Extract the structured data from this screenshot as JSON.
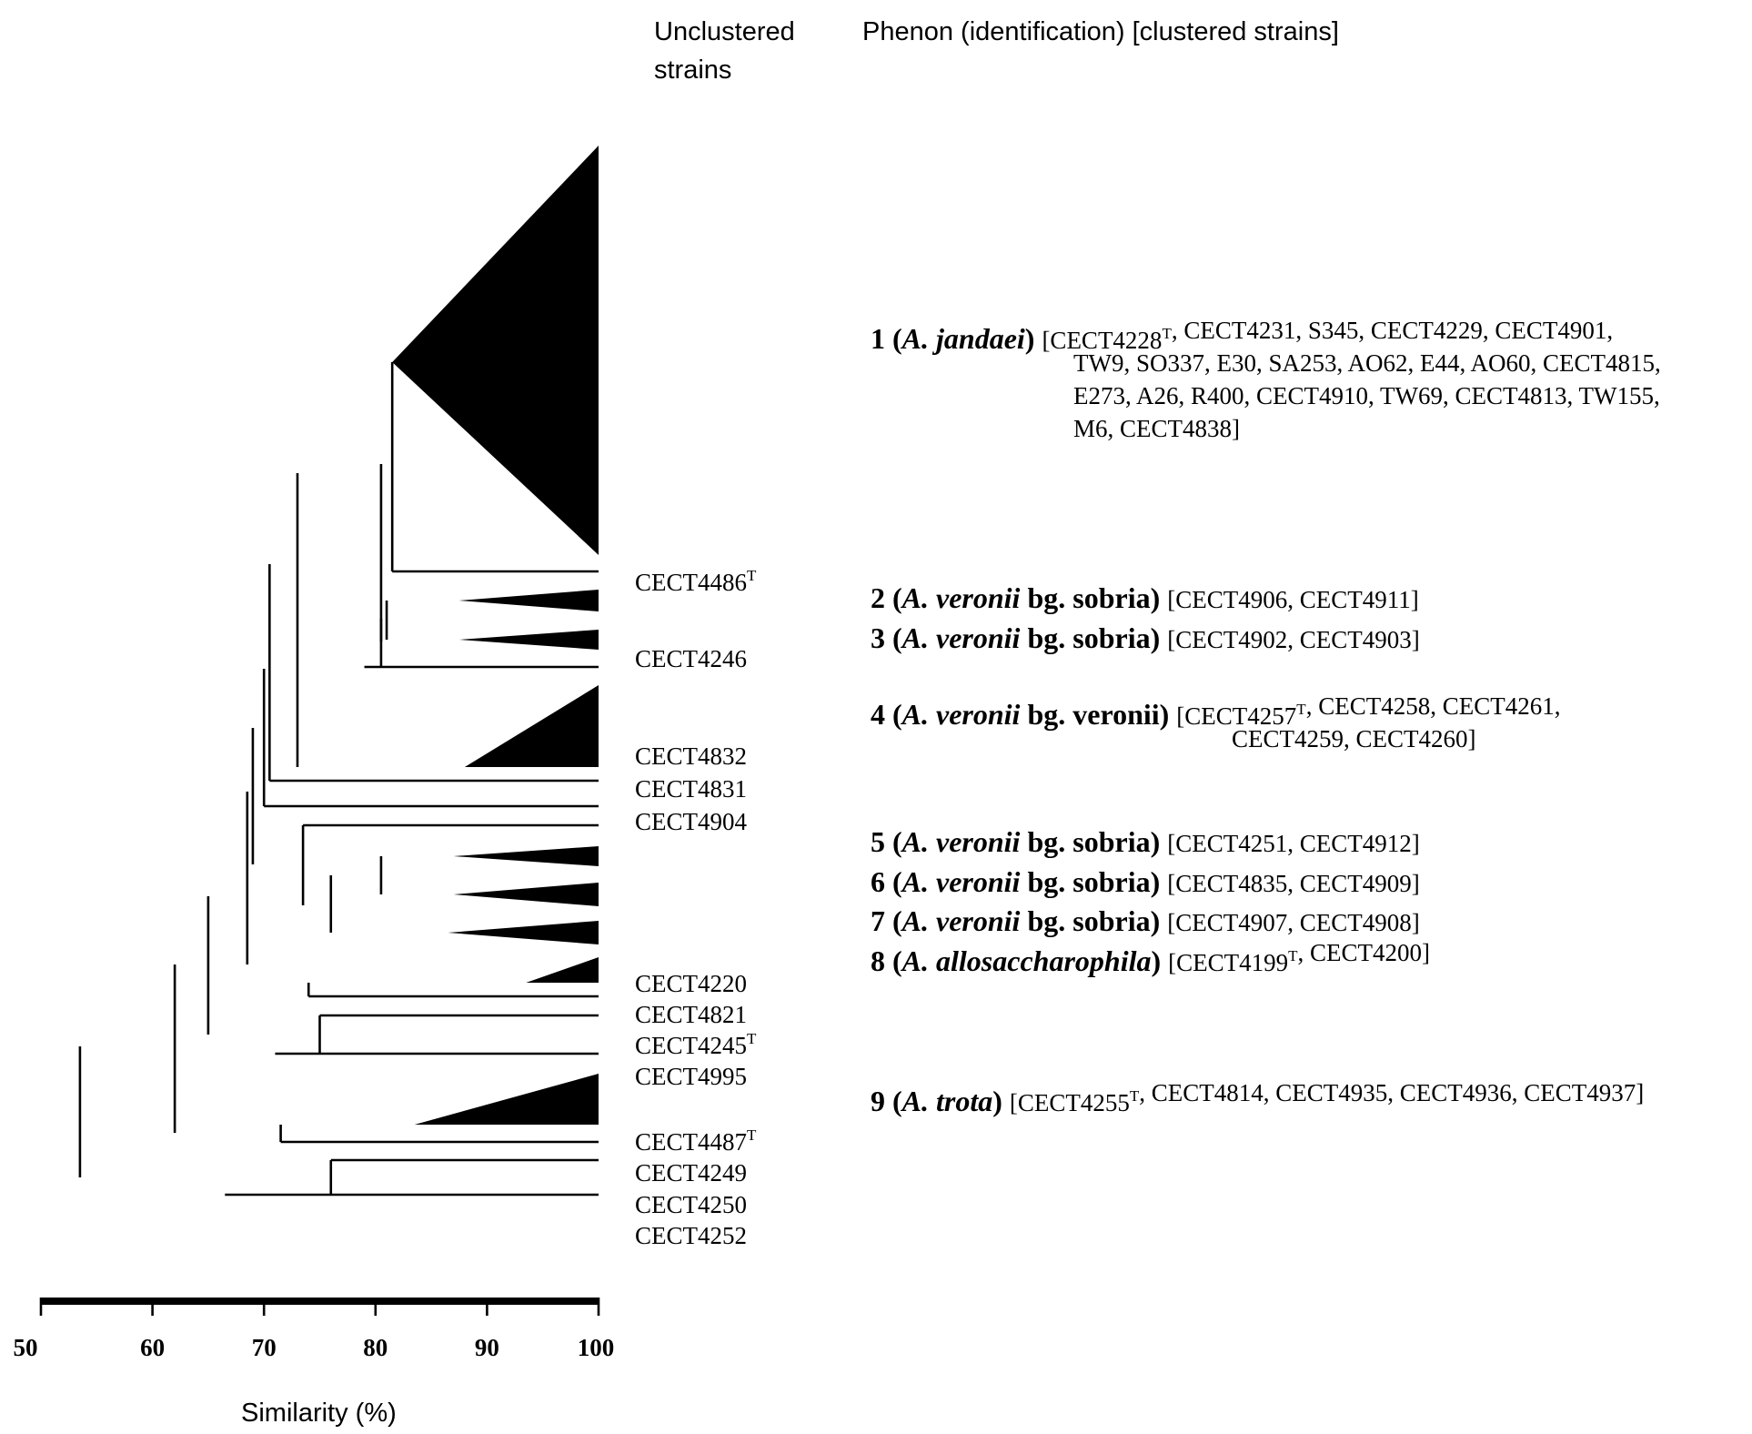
{
  "headers": {
    "unclustered_line1": "Unclustered",
    "unclustered_line2": "strains",
    "phenon": "Phenon (identification) [clustered strains]"
  },
  "unclustered": [
    {
      "label": "CECT4486",
      "sup": "T"
    },
    {
      "label": "CECT4246",
      "sup": ""
    },
    {
      "label": "CECT4832",
      "sup": ""
    },
    {
      "label": "CECT4831",
      "sup": ""
    },
    {
      "label": "CECT4904",
      "sup": ""
    },
    {
      "label": "CECT4220",
      "sup": ""
    },
    {
      "label": "CECT4821",
      "sup": ""
    },
    {
      "label": "CECT4245",
      "sup": "T"
    },
    {
      "label": "CECT4995",
      "sup": ""
    },
    {
      "label": "CECT4487",
      "sup": "T"
    },
    {
      "label": "CECT4249",
      "sup": ""
    },
    {
      "label": "CECT4250",
      "sup": ""
    },
    {
      "label": "CECT4252",
      "sup": ""
    }
  ],
  "phenons": [
    {
      "num": "1",
      "species": "A. jandaei",
      "suffix": "",
      "lines": [
        [
          {
            "t": "[CECT4228"
          },
          {
            "t": "T",
            "sup": true
          },
          {
            "t": ", CECT4231, S345, CECT4229, CECT4901,"
          }
        ],
        [
          {
            "t": "TW9, SO337, E30, SA253,  AO62, E44, AO60, CECT4815,"
          }
        ],
        [
          {
            "t": "E273, A26, R400, CECT4910, TW69, CECT4813,  TW155,"
          }
        ],
        [
          {
            "t": "M6, CECT4838]"
          }
        ]
      ]
    },
    {
      "num": "2",
      "species": "A. veronii",
      "suffix": " bg. sobria",
      "lines": [
        [
          {
            "t": "[CECT4906, CECT4911]"
          }
        ]
      ]
    },
    {
      "num": "3",
      "species": "A. veronii",
      "suffix": " bg. sobria",
      "lines": [
        [
          {
            "t": "[CECT4902, CECT4903]"
          }
        ]
      ]
    },
    {
      "num": "4",
      "species": "A. veronii",
      "suffix": " bg. veronii",
      "lines": [
        [
          {
            "t": "[CECT4257"
          },
          {
            "t": "T",
            "sup": true
          },
          {
            "t": ", CECT4258, CECT4261,"
          }
        ],
        [
          {
            "t": "CECT4259, CECT4260]"
          }
        ]
      ]
    },
    {
      "num": "5",
      "species": "A. veronii",
      "suffix": " bg. sobria",
      "lines": [
        [
          {
            "t": "[CECT4251, CECT4912]"
          }
        ]
      ]
    },
    {
      "num": "6",
      "species": "A. veronii",
      "suffix": " bg. sobria",
      "lines": [
        [
          {
            "t": "[CECT4835, CECT4909]"
          }
        ]
      ]
    },
    {
      "num": "7",
      "species": "A. veronii",
      "suffix": " bg. sobria",
      "lines": [
        [
          {
            "t": "[CECT4907, CECT4908]"
          }
        ]
      ]
    },
    {
      "num": "8",
      "species": "A. allosaccharophila",
      "suffix": "",
      "lines": [
        [
          {
            "t": "[CECT4199"
          },
          {
            "t": "T",
            "sup": true
          },
          {
            "t": ", CECT4200]"
          }
        ]
      ]
    },
    {
      "num": "9",
      "species": "A. trota",
      "suffix": "",
      "lines": [
        [
          {
            "t": "[CECT4255"
          },
          {
            "t": "T",
            "sup": true
          },
          {
            "t": ", CECT4814, CECT4935, CECT4936, CECT4937]"
          }
        ]
      ]
    }
  ],
  "axis": {
    "ticks": [
      50,
      60,
      70,
      80,
      90,
      100
    ],
    "range": [
      50,
      100
    ],
    "label": "Similarity (%)"
  },
  "tree": {
    "clusters": [
      {
        "name": "phenon-1",
        "node": 81.5,
        "range": [
          160,
          610
        ]
      },
      {
        "name": "phenon-2",
        "node": 87.5,
        "range": [
          648,
          672
        ]
      },
      {
        "name": "phenon-3",
        "node": 87.5,
        "range": [
          692,
          714
        ]
      },
      {
        "name": "phenon-4",
        "node": 88.0,
        "range": [
          753,
          843
        ]
      },
      {
        "name": "phenon-5",
        "node": 87.0,
        "range": [
          930,
          952
        ]
      },
      {
        "name": "phenon-6",
        "node": 87.0,
        "range": [
          970,
          996
        ]
      },
      {
        "name": "phenon-7",
        "node": 86.5,
        "range": [
          1012,
          1038
        ]
      },
      {
        "name": "phenon-8",
        "node": 93.5,
        "range": [
          1052,
          1080
        ]
      },
      {
        "name": "phenon-9",
        "node": 83.5,
        "range": [
          1180,
          1236
        ]
      }
    ],
    "leaves": [
      {
        "name": "leaf-cect4486",
        "value": 81.5
      },
      {
        "name": "leaf-cect4246",
        "value": 79.0
      },
      {
        "name": "leaf-cect4832",
        "value": 70.5
      },
      {
        "name": "leaf-cect4831",
        "value": 70.0
      },
      {
        "name": "leaf-cect4904",
        "value": 73.5
      },
      {
        "name": "leaf-cect4220",
        "value": 74.0
      },
      {
        "name": "leaf-cect4821",
        "value": 75.0
      },
      {
        "name": "leaf-cect4245",
        "value": 71.0
      },
      {
        "name": "leaf-cect4249",
        "value": 71.5
      },
      {
        "name": "leaf-cect4250",
        "value": 76.0
      },
      {
        "name": "leaf-cect4252",
        "value": 66.5
      }
    ]
  }
}
